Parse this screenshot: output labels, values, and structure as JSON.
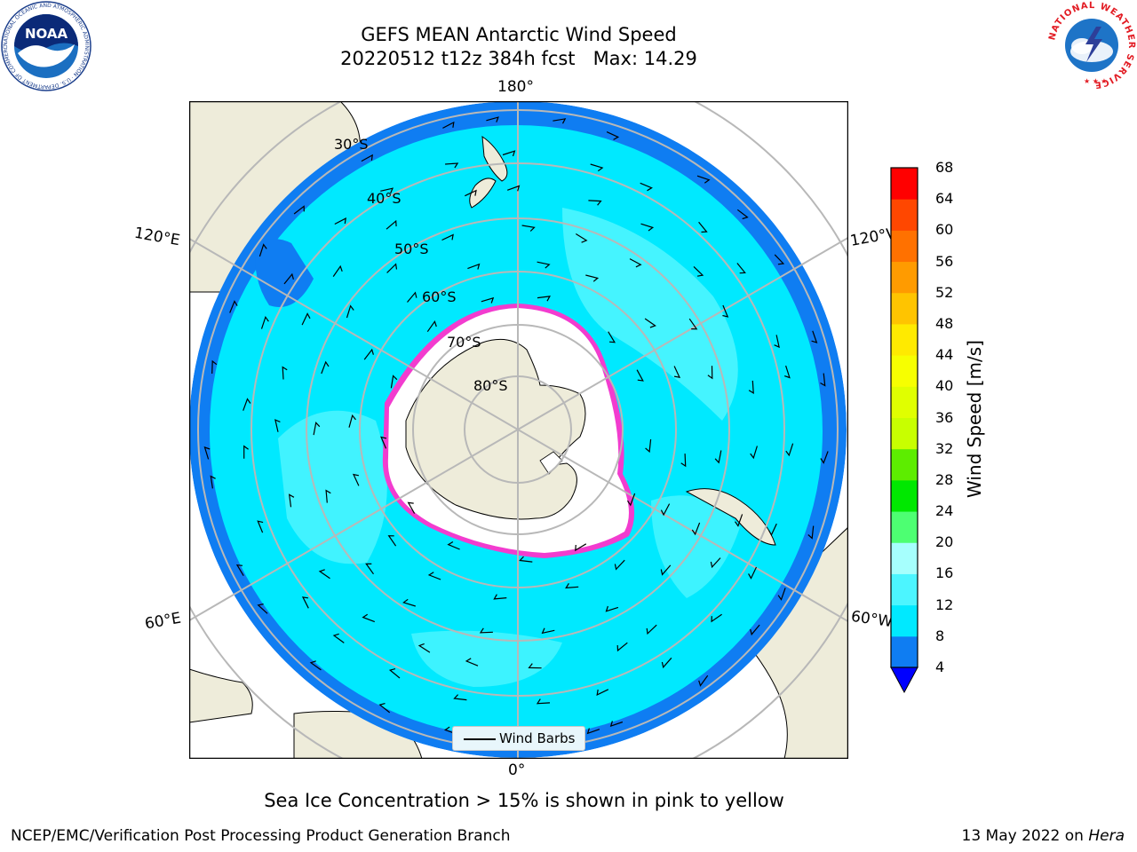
{
  "title": {
    "line1": "GEFS MEAN Antarctic Wind Speed",
    "line2": "20220512 t12z 384h fcst   Max: 14.29"
  },
  "map": {
    "projection": "south-polar-stereographic",
    "longitude_labels": {
      "top": "180°",
      "bottom": "0°",
      "left_upper": "120°E",
      "left_lower": "60°E",
      "right_upper": "120°W",
      "right_lower": "60°W"
    },
    "latitude_labels": [
      "30°S",
      "40°S",
      "50°S",
      "60°S",
      "70°S",
      "80°S"
    ],
    "colors": {
      "land": "#eeecda",
      "ice": "#ffffff",
      "ocean_4_8": "#0f7df2",
      "ocean_8_12": "#00e9ff",
      "ocean_12_16": "#4cf5ff",
      "sea_ice_edge": "#ff33cc",
      "sea_ice_inner": "#ffd400",
      "gridlines": "#b8b8b8"
    }
  },
  "legend": {
    "wind_barbs_label": "Wind Barbs"
  },
  "colorbar": {
    "label": "Wind Speed [m/s]",
    "ticks": [
      "68",
      "64",
      "60",
      "56",
      "52",
      "48",
      "44",
      "40",
      "36",
      "32",
      "28",
      "24",
      "20",
      "16",
      "12",
      "8",
      "4"
    ],
    "colors": [
      "#0000ff",
      "#0f7df2",
      "#00e9ff",
      "#4cf5ff",
      "#a6fffd",
      "#4dff72",
      "#00e800",
      "#5ded00",
      "#c8ff00",
      "#e0ff00",
      "#f7ff00",
      "#ffea00",
      "#ffc400",
      "#ff9b00",
      "#ff7100",
      "#ff4700",
      "#ff0000"
    ]
  },
  "logos": {
    "noaa_text": "NOAA",
    "noaa_ring": "NATIONAL OCEANIC AND ATMOSPHERIC ADMINISTRATION · U.S. DEPARTMENT OF COMMERCE",
    "nws_ring": "NATIONAL WEATHER SERVICE"
  },
  "footer": {
    "note": "Sea Ice Concentration > 15% is shown in pink to yellow",
    "left": "NCEP/EMC/Verification Post Processing Product Generation Branch",
    "right_date": "13 May 2022 on ",
    "right_host": "Hera"
  }
}
